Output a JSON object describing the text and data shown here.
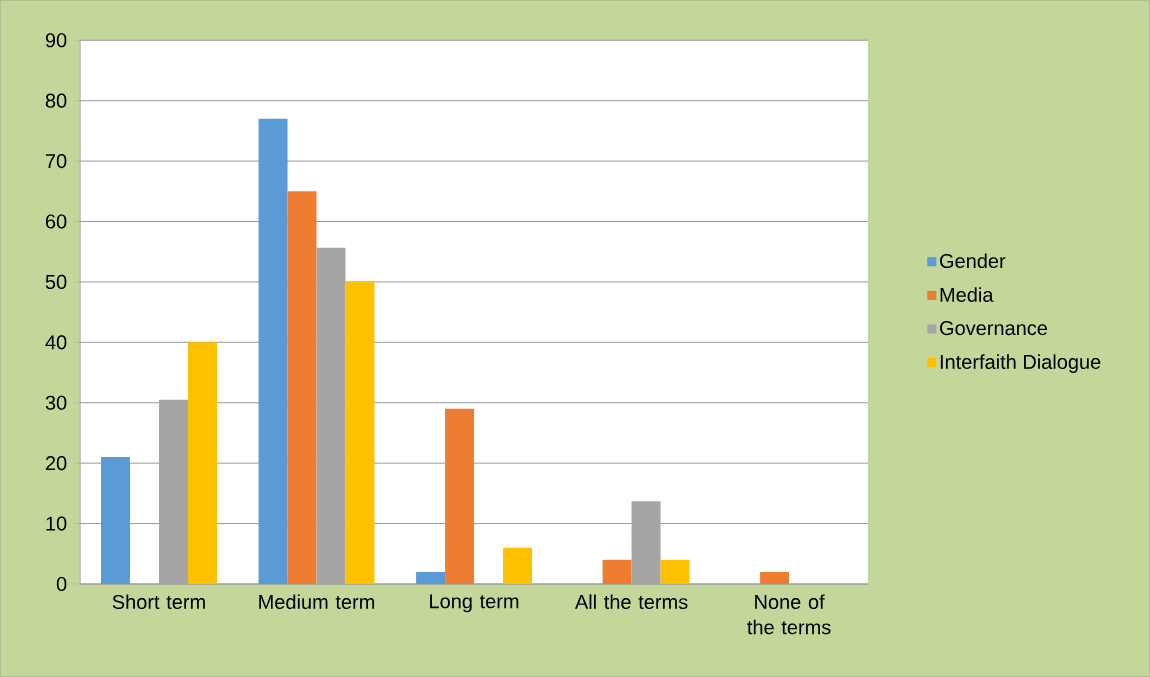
{
  "chart_data": {
    "type": "bar",
    "categories": [
      "Short term",
      "Medium term",
      "Long term",
      "All the terms",
      "None of the terms"
    ],
    "series": [
      {
        "name": "Gender",
        "color": "#5b9bd5",
        "values": [
          21,
          77,
          2,
          0,
          0
        ]
      },
      {
        "name": "Media",
        "color": "#ed7d31",
        "values": [
          0,
          65,
          29,
          4,
          2
        ]
      },
      {
        "name": "Governance",
        "color": "#a5a5a5",
        "values": [
          30.5,
          55.7,
          0,
          13.7,
          0
        ]
      },
      {
        "name": "Interfaith Dialogue",
        "color": "#ffc000",
        "values": [
          40,
          50,
          6,
          4,
          0
        ]
      }
    ],
    "ylim": [
      0,
      90
    ],
    "yticks": [
      0,
      10,
      20,
      30,
      40,
      50,
      60,
      70,
      80,
      90
    ],
    "grid": "y",
    "legend": "right"
  }
}
